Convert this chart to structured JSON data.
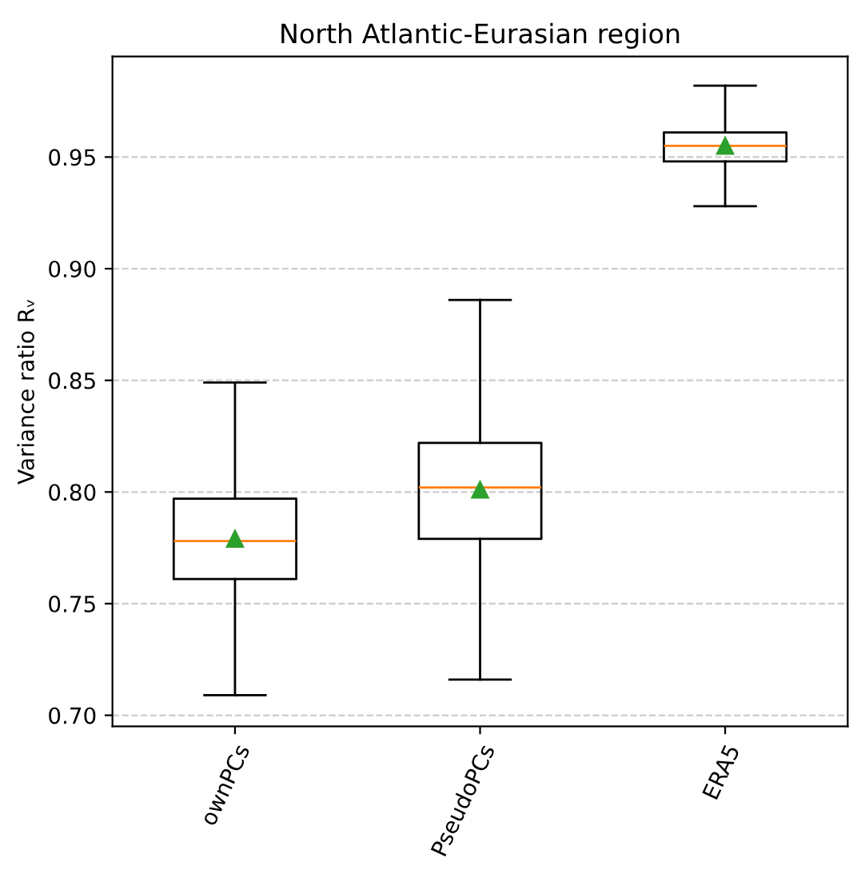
{
  "chart_data": {
    "type": "box",
    "title": "North Atlantic-Eurasian region",
    "ylabel": "Variance ratio Rᵥ",
    "categories": [
      "ownPCs",
      "PseudoPCs",
      "ERA5"
    ],
    "boxes": [
      {
        "low": 0.709,
        "q1": 0.761,
        "median": 0.778,
        "q3": 0.797,
        "high": 0.849,
        "mean": 0.779
      },
      {
        "low": 0.716,
        "q1": 0.779,
        "median": 0.802,
        "q3": 0.822,
        "high": 0.886,
        "mean": 0.801
      },
      {
        "low": 0.928,
        "q1": 0.948,
        "median": 0.955,
        "q3": 0.961,
        "high": 0.982,
        "mean": 0.955
      }
    ],
    "ylim": [
      0.695,
      0.995
    ],
    "yticks": [
      {
        "value": 0.7,
        "label": "0.70"
      },
      0.75,
      {
        "value": 0.8,
        "label": "0.80"
      },
      0.85,
      {
        "value": 0.9,
        "label": "0.90"
      },
      0.95
    ],
    "grid": "y"
  }
}
